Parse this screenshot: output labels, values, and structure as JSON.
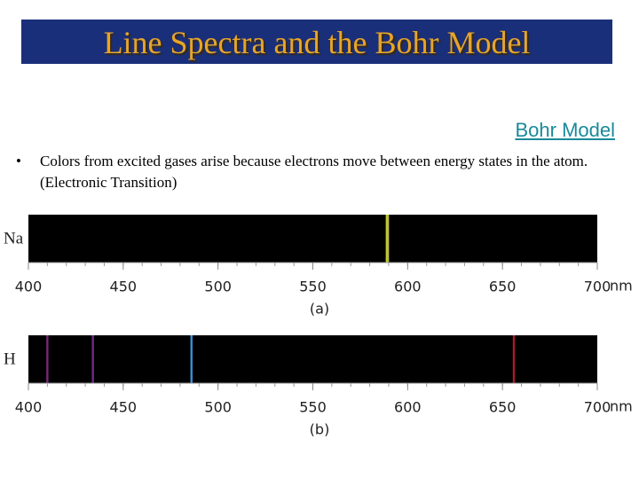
{
  "header": {
    "title": "Line Spectra and the Bohr Model"
  },
  "link": "Bohr Model",
  "bullet": "Colors from excited gases arise because electrons move between energy states in the atom.  (Electronic Transition)",
  "axis": {
    "xlim": [
      400,
      700
    ],
    "xticks": [
      400,
      450,
      500,
      550,
      600,
      650,
      700
    ],
    "unit": "nm"
  },
  "spectra": [
    {
      "element": "Na",
      "caption": "(a)",
      "lines": [
        {
          "wavelength": 589,
          "color": "#c8c830"
        },
        {
          "wavelength": 589.6,
          "color": "#b8c040"
        }
      ]
    },
    {
      "element": "H",
      "caption": "(b)",
      "lines": [
        {
          "wavelength": 410,
          "color": "#7a2878"
        },
        {
          "wavelength": 434,
          "color": "#6e2a86"
        },
        {
          "wavelength": 486,
          "color": "#3a90d8"
        },
        {
          "wavelength": 656,
          "color": "#a81c2a"
        }
      ]
    }
  ]
}
